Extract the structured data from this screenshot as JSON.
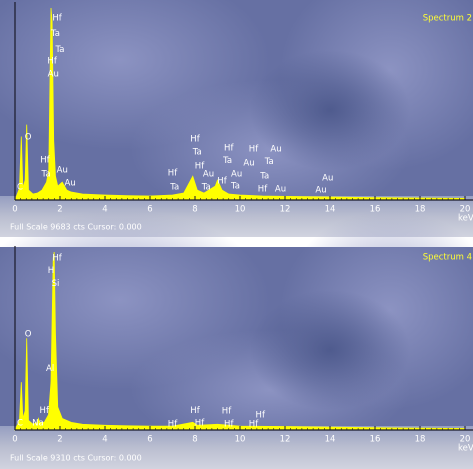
{
  "chart_data": [
    {
      "type": "area",
      "title": "Spectrum 2",
      "color": "#ffff00",
      "x": [
        0,
        0.2,
        0.28,
        0.35,
        0.45,
        0.52,
        0.6,
        0.8,
        1.0,
        1.2,
        1.4,
        1.5,
        1.6,
        1.65,
        1.72,
        1.8,
        1.9,
        2.1,
        2.3,
        2.5,
        3,
        4,
        5,
        6,
        7,
        7.5,
        7.9,
        8.1,
        8.4,
        8.9,
        9.0,
        9.2,
        9.5,
        10,
        11,
        12,
        14,
        16,
        18,
        20
      ],
      "values": [
        0,
        600,
        3200,
        600,
        1000,
        3800,
        500,
        300,
        350,
        500,
        900,
        1500,
        9683,
        9000,
        3000,
        1200,
        700,
        900,
        500,
        400,
        300,
        250,
        220,
        200,
        250,
        350,
        1200,
        500,
        350,
        700,
        1000,
        500,
        300,
        250,
        200,
        180,
        150,
        120,
        100,
        80
      ],
      "xlim": [
        0,
        20
      ],
      "ylim": [
        0,
        9683
      ],
      "xticks": [
        0,
        2,
        4,
        6,
        8,
        10,
        12,
        14,
        16,
        18,
        20
      ],
      "x_label": "keV",
      "footer": "Full Scale 9683 cts Cursor: 0.000",
      "annotations": [
        {
          "text": "Hf",
          "x": 1.87,
          "y": 9180
        },
        {
          "text": "Ta",
          "x": 1.8,
          "y": 8400
        },
        {
          "text": "Ta",
          "x": 2.0,
          "y": 7600
        },
        {
          "text": "Hf",
          "x": 1.65,
          "y": 7000
        },
        {
          "text": "Au",
          "x": 1.7,
          "y": 6350
        },
        {
          "text": "O",
          "x": 0.58,
          "y": 3180
        },
        {
          "text": "Hf",
          "x": 1.33,
          "y": 2020
        },
        {
          "text": "Ta",
          "x": 1.38,
          "y": 1310
        },
        {
          "text": "Au",
          "x": 2.1,
          "y": 1510
        },
        {
          "text": "Au",
          "x": 2.45,
          "y": 860
        },
        {
          "text": "C",
          "x": 0.22,
          "y": 650
        },
        {
          "text": "Hf",
          "x": 8.0,
          "y": 3080
        },
        {
          "text": "Ta",
          "x": 8.1,
          "y": 2420
        },
        {
          "text": "Hf",
          "x": 9.5,
          "y": 2620
        },
        {
          "text": "Hf",
          "x": 10.6,
          "y": 2570
        },
        {
          "text": "Au",
          "x": 11.6,
          "y": 2570
        },
        {
          "text": "Hf",
          "x": 8.2,
          "y": 1710
        },
        {
          "text": "Ta",
          "x": 9.45,
          "y": 2000
        },
        {
          "text": "Au",
          "x": 10.4,
          "y": 1870
        },
        {
          "text": "Ta",
          "x": 11.3,
          "y": 1930
        },
        {
          "text": "Hf",
          "x": 7.0,
          "y": 1360
        },
        {
          "text": "Au",
          "x": 8.6,
          "y": 1310
        },
        {
          "text": "Au",
          "x": 9.85,
          "y": 1310
        },
        {
          "text": "Ta",
          "x": 11.1,
          "y": 1210
        },
        {
          "text": "Hf",
          "x": 9.2,
          "y": 960
        },
        {
          "text": "Au",
          "x": 13.9,
          "y": 1110
        },
        {
          "text": "Ta",
          "x": 7.1,
          "y": 650
        },
        {
          "text": "Ta",
          "x": 8.5,
          "y": 650
        },
        {
          "text": "Ta",
          "x": 9.8,
          "y": 700
        },
        {
          "text": "Hf",
          "x": 11.0,
          "y": 550
        },
        {
          "text": "Au",
          "x": 11.8,
          "y": 550
        },
        {
          "text": "Au",
          "x": 13.6,
          "y": 500
        }
      ]
    },
    {
      "type": "area",
      "title": "Spectrum 4",
      "color": "#ffff00",
      "x": [
        0,
        0.2,
        0.28,
        0.35,
        0.45,
        0.52,
        0.6,
        0.8,
        1.0,
        1.04,
        1.1,
        1.3,
        1.49,
        1.6,
        1.7,
        1.74,
        1.8,
        1.9,
        2.1,
        2.5,
        3,
        4,
        5,
        6,
        7,
        7.9,
        8.1,
        9,
        10,
        12,
        14,
        16,
        18,
        20
      ],
      "values": [
        0,
        500,
        2500,
        600,
        1000,
        4800,
        500,
        300,
        400,
        600,
        400,
        400,
        800,
        2500,
        9000,
        9310,
        5000,
        1200,
        600,
        400,
        300,
        250,
        220,
        200,
        200,
        400,
        250,
        300,
        200,
        180,
        150,
        120,
        100,
        80
      ],
      "xlim": [
        0,
        20
      ],
      "ylim": [
        0,
        9310
      ],
      "xticks": [
        0,
        2,
        4,
        6,
        8,
        10,
        12,
        14,
        16,
        18,
        20
      ],
      "x_label": "keV",
      "footer": "Full Scale 9310 cts Cursor: 0.000",
      "annotations": [
        {
          "text": "Hf",
          "x": 1.87,
          "y": 9000
        },
        {
          "text": "H",
          "x": 1.6,
          "y": 8330
        },
        {
          "text": "Si",
          "x": 1.8,
          "y": 7650
        },
        {
          "text": "O",
          "x": 0.58,
          "y": 5020
        },
        {
          "text": "Al",
          "x": 1.56,
          "y": 3210
        },
        {
          "text": "Hf",
          "x": 1.3,
          "y": 1030
        },
        {
          "text": "Na",
          "x": 1.02,
          "y": 360
        },
        {
          "text": "C",
          "x": 0.22,
          "y": 360
        },
        {
          "text": "Hf",
          "x": 8.0,
          "y": 1030
        },
        {
          "text": "Hf",
          "x": 9.4,
          "y": 990
        },
        {
          "text": "Hf",
          "x": 10.9,
          "y": 780
        },
        {
          "text": "Hf",
          "x": 7.0,
          "y": 310
        },
        {
          "text": "Hf",
          "x": 8.2,
          "y": 360
        },
        {
          "text": "Hf",
          "x": 9.5,
          "y": 310
        },
        {
          "text": "Hf",
          "x": 10.6,
          "y": 310
        }
      ]
    }
  ]
}
